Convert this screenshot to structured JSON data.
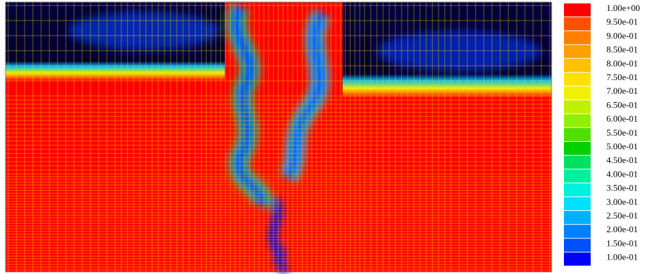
{
  "chart_data": {
    "type": "contour",
    "colorbar": {
      "ticks": [
        {
          "value": 1.0,
          "label": "1.00e+00"
        },
        {
          "value": 0.95,
          "label": "9.50e-01"
        },
        {
          "value": 0.9,
          "label": "9.00e-01"
        },
        {
          "value": 0.85,
          "label": "8.50e-01"
        },
        {
          "value": 0.8,
          "label": "8.00e-01"
        },
        {
          "value": 0.75,
          "label": "7.50e-01"
        },
        {
          "value": 0.7,
          "label": "7.00e-01"
        },
        {
          "value": 0.65,
          "label": "6.50e-01"
        },
        {
          "value": 0.6,
          "label": "6.00e-01"
        },
        {
          "value": 0.55,
          "label": "5.50e-01"
        },
        {
          "value": 0.5,
          "label": "5.00e-01"
        },
        {
          "value": 0.45,
          "label": "4.50e-01"
        },
        {
          "value": 0.4,
          "label": "4.00e-01"
        },
        {
          "value": 0.35,
          "label": "3.50e-01"
        },
        {
          "value": 0.3,
          "label": "3.00e-01"
        },
        {
          "value": 0.25,
          "label": "2.50e-01"
        },
        {
          "value": 0.2,
          "label": "2.00e-01"
        },
        {
          "value": 0.15,
          "label": "1.50e-01"
        },
        {
          "value": 0.1,
          "label": "1.00e-01"
        }
      ],
      "colors": [
        "#ff0000",
        "#ff5000",
        "#ff8000",
        "#ffa000",
        "#ffc000",
        "#ffe000",
        "#f0f000",
        "#c0f000",
        "#90f000",
        "#50e000",
        "#00d000",
        "#00e060",
        "#00f0a0",
        "#00f0e0",
        "#00e0ff",
        "#00b0ff",
        "#0080ff",
        "#0050ff",
        "#0000ff"
      ]
    }
  }
}
